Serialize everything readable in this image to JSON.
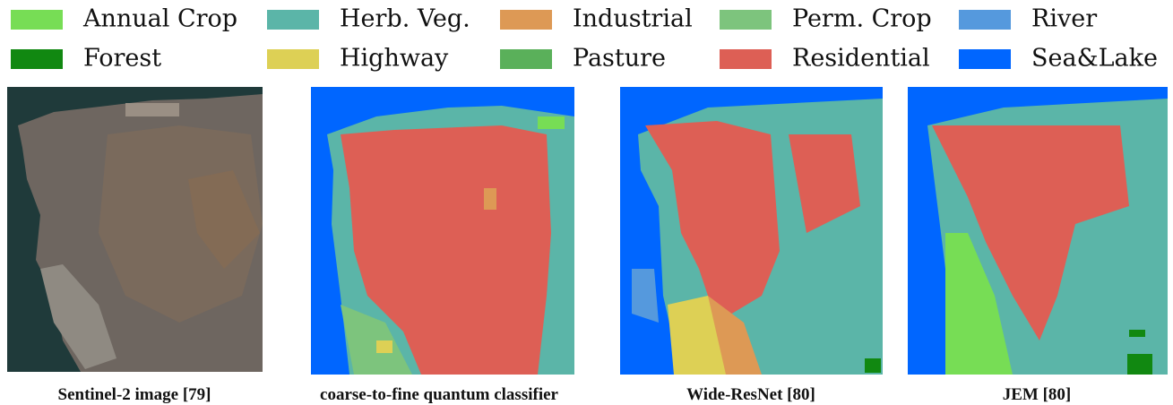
{
  "legend": {
    "items": [
      {
        "label": "Annual Crop",
        "color": "#77dd55"
      },
      {
        "label": "Herb. Veg.",
        "color": "#5bb5a8"
      },
      {
        "label": "Industrial",
        "color": "#dd9955"
      },
      {
        "label": "Perm. Crop",
        "color": "#7dc47d"
      },
      {
        "label": "River",
        "color": "#5599dd"
      },
      {
        "label": "Forest",
        "color": "#118811"
      },
      {
        "label": "Highway",
        "color": "#ddd055"
      },
      {
        "label": "Pasture",
        "color": "#5ab05a"
      },
      {
        "label": "Residential",
        "color": "#dd5f55"
      },
      {
        "label": "Sea&Lake",
        "color": "#0066ff"
      }
    ]
  },
  "panels": [
    {
      "caption": "Sentinel-2 image [79]"
    },
    {
      "caption": "coarse-to-fine quantum classifier"
    },
    {
      "caption": "Wide-ResNet [80]"
    },
    {
      "caption": "JEM [80]"
    }
  ]
}
